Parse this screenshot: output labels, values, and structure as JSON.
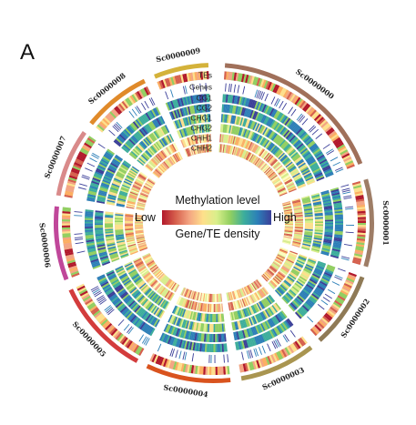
{
  "panel_label": "A",
  "track_labels": [
    "TEs",
    "Genes",
    "CG1",
    "CG2",
    "CHG1",
    "CHG2",
    "CHH1",
    "CHH2"
  ],
  "chromosomes": [
    {
      "name": "Sc0000000",
      "color": "#a0705a"
    },
    {
      "name": "Sc0000001",
      "color": "#9e7d66"
    },
    {
      "name": "Sc0000002",
      "color": "#8f7a56"
    },
    {
      "name": "Sc0000003",
      "color": "#a99550"
    },
    {
      "name": "Sc0000004",
      "color": "#d9531e"
    },
    {
      "name": "Sc0000005",
      "color": "#d33c3c"
    },
    {
      "name": "Sc0000006",
      "color": "#c0479a"
    },
    {
      "name": "Sc0000007",
      "color": "#d98a8a"
    },
    {
      "name": "Sc0000008",
      "color": "#e08a2a"
    },
    {
      "name": "Sc0000009",
      "color": "#d4b23a"
    }
  ],
  "legend": {
    "title": "Methylation level",
    "subtitle": "Gene/TE density",
    "low": "Low",
    "high": "High",
    "colors": [
      "#b2182b",
      "#d6604d",
      "#f4a582",
      "#fee08b",
      "#d9ef8b",
      "#91cf60",
      "#3cae9c",
      "#2c7fb8",
      "#3b3f99"
    ]
  }
}
